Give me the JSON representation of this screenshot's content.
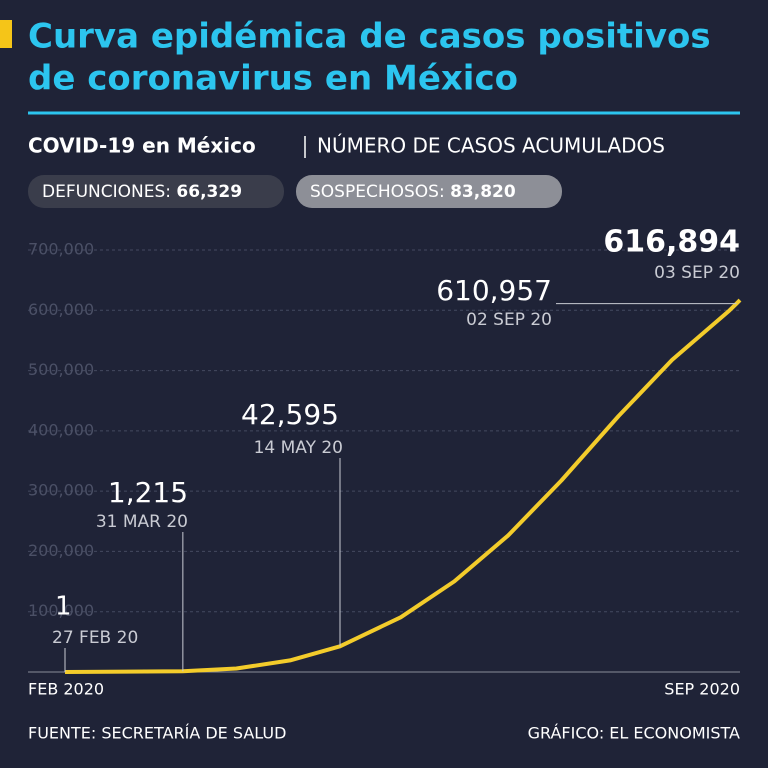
{
  "chart_data": {
    "type": "line",
    "title": [
      "Curva epidémica de casos positivos",
      "de coronavirus en México"
    ],
    "subtitle": "COVID-19 en México",
    "subtitle_detail": "NÚMERO DE CASOS ACUMULADOS",
    "badges": [
      {
        "label": "DEFUNCIONES:",
        "value": "66,329"
      },
      {
        "label": "SOSPECHOSOS:",
        "value": "83,820"
      }
    ],
    "x_axis_labels": [
      "FEB 2020",
      "SEP 2020"
    ],
    "x": [
      "2020-02-27",
      "2020-03-31",
      "2020-04-15",
      "2020-04-30",
      "2020-05-14",
      "2020-05-31",
      "2020-06-15",
      "2020-06-30",
      "2020-07-15",
      "2020-07-31",
      "2020-08-15",
      "2020-08-31",
      "2020-09-02",
      "2020-09-03"
    ],
    "series": [
      {
        "name": "Casos acumulados",
        "color": "#f3cc2b",
        "values": [
          1,
          1215,
          5847,
          19224,
          42595,
          90664,
          150264,
          226089,
          317635,
          424637,
          517714,
          599560,
          610957,
          616894
        ]
      }
    ],
    "xlim": [
      "2020-02-27",
      "2020-09-03"
    ],
    "ylim": [
      0,
      700000
    ],
    "yticks": [
      {
        "value": 100000,
        "label": "100,000"
      },
      {
        "value": 200000,
        "label": "200,000"
      },
      {
        "value": 300000,
        "label": "300,000"
      },
      {
        "value": 400000,
        "label": "400,000"
      },
      {
        "value": 500000,
        "label": "500,000"
      },
      {
        "value": 600000,
        "label": "600,000"
      },
      {
        "value": 700000,
        "label": "700,000"
      }
    ],
    "grid": true,
    "annotations": [
      {
        "x": "2020-02-27",
        "value": 1,
        "label": "1",
        "date": "27 FEB 20"
      },
      {
        "x": "2020-03-31",
        "value": 1215,
        "label": "1,215",
        "date": "31 MAR 20"
      },
      {
        "x": "2020-05-14",
        "value": 42595,
        "label": "42,595",
        "date": "14 MAY 20"
      },
      {
        "x": "2020-09-02",
        "value": 610957,
        "label": "610,957",
        "date": "02 SEP 20"
      },
      {
        "x": "2020-09-03",
        "value": 616894,
        "label": "616,894",
        "date": "03 SEP 20"
      }
    ],
    "source": "FUENTE: SECRETARÍA DE SALUD",
    "credit": "GRÁFICO: EL ECONOMISTA"
  }
}
